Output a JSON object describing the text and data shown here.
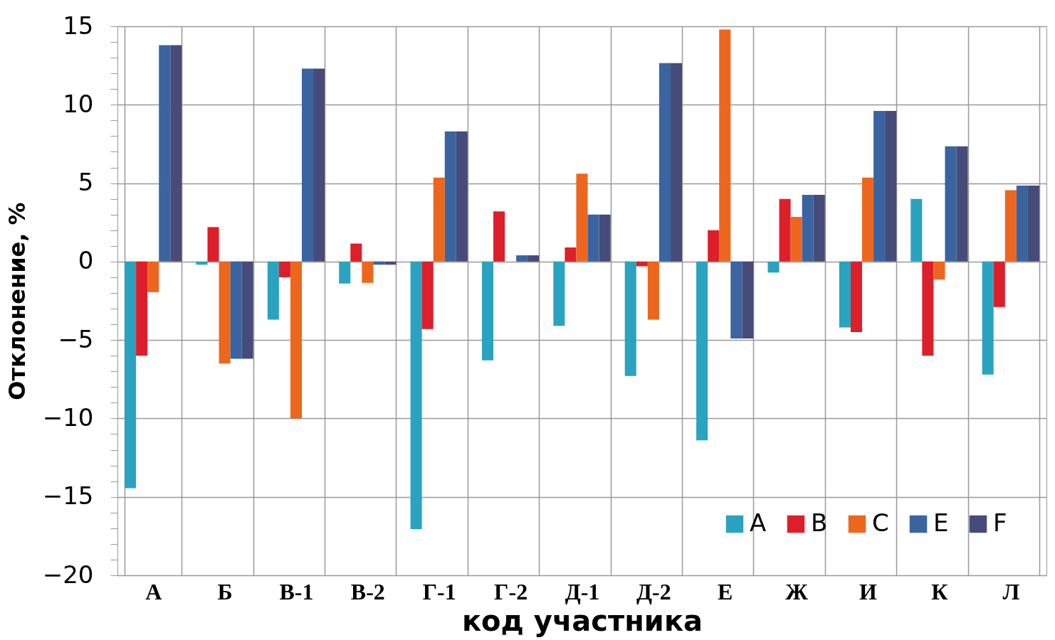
{
  "chart_data": {
    "type": "bar",
    "xlabel": "код участника",
    "ylabel": "Отклонение,  %",
    "categories": [
      "А",
      "Б",
      "В-1",
      "В-2",
      "Г-1",
      "Г-2",
      "Д-1",
      "Д-2",
      "Е",
      "Ж",
      "И",
      "К",
      "Л"
    ],
    "series": [
      {
        "name": "A",
        "color": "#2aa3c0",
        "values": [
          -14.45,
          -0.2,
          -3.7,
          -1.4,
          -17.05,
          -6.3,
          -4.1,
          -7.3,
          -11.4,
          -0.7,
          -4.2,
          4.0,
          -7.2
        ]
      },
      {
        "name": "B",
        "color": "#dc1f2a",
        "values": [
          -6.0,
          2.2,
          -1.0,
          1.15,
          -4.3,
          3.2,
          0.9,
          -0.3,
          2.0,
          4.0,
          -4.5,
          -6.0,
          -2.9
        ]
      },
      {
        "name": "C",
        "color": "#ec661e",
        "values": [
          -1.95,
          -6.5,
          -10.0,
          -1.35,
          5.35,
          0,
          5.6,
          -3.7,
          14.8,
          2.85,
          5.35,
          -1.15,
          4.55
        ]
      },
      {
        "name": "E",
        "color": "#3a64a0",
        "values": [
          13.8,
          -6.2,
          12.3,
          -0.2,
          8.3,
          0.4,
          3.0,
          12.65,
          -4.9,
          4.25,
          9.6,
          7.35,
          4.85
        ]
      },
      {
        "name": "F",
        "color": "#474b7a",
        "values": [
          13.8,
          -6.2,
          12.3,
          -0.2,
          8.3,
          0.4,
          3.0,
          12.65,
          -4.9,
          4.25,
          9.6,
          7.35,
          4.85
        ]
      }
    ],
    "ylim": [
      -20,
      15
    ],
    "yticks": [
      -20,
      {
        "value": -19,
        "label": null
      },
      {
        "value": -18,
        "label": null
      },
      {
        "value": -17,
        "label": null
      },
      {
        "value": -16,
        "label": null
      },
      -15,
      {
        "value": -14,
        "label": null
      },
      {
        "value": -13,
        "label": null
      },
      {
        "value": -12,
        "label": null
      },
      {
        "value": -11,
        "label": null
      },
      -10,
      {
        "value": -9,
        "label": null
      },
      {
        "value": -8,
        "label": null
      },
      {
        "value": -7,
        "label": null
      },
      {
        "value": -6,
        "label": null
      },
      -5,
      {
        "value": -4,
        "label": null
      },
      {
        "value": -3,
        "label": null
      },
      {
        "value": -2,
        "label": null
      },
      {
        "value": -1,
        "label": null
      },
      0,
      {
        "value": 1,
        "label": null
      },
      {
        "value": 2,
        "label": null
      },
      {
        "value": 3,
        "label": null
      },
      {
        "value": 4,
        "label": null
      },
      5,
      {
        "value": 6,
        "label": null
      },
      {
        "value": 7,
        "label": null
      },
      {
        "value": 8,
        "label": null
      },
      {
        "value": 9,
        "label": null
      },
      10,
      {
        "value": 11,
        "label": null
      },
      {
        "value": 12,
        "label": null
      },
      {
        "value": 13,
        "label": null
      },
      {
        "value": 14,
        "label": null
      },
      15
    ],
    "grid": true,
    "legend": "bottom right"
  }
}
